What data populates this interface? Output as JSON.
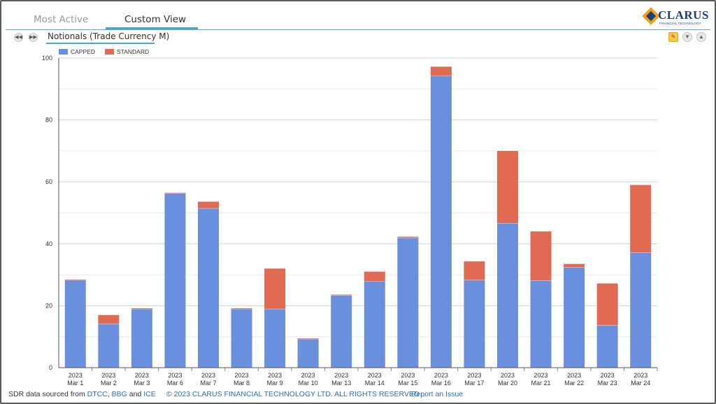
{
  "tabs": [
    {
      "label": "Most Active",
      "active": false
    },
    {
      "label": "Custom View",
      "active": true
    }
  ],
  "logo": {
    "name": "CLARUS",
    "tagline": "FINANCIAL TECHNOLOGY"
  },
  "subtitle": "Notionals (Trade Currency M)",
  "toolbar": {
    "icons": [
      "note-icon",
      "expand-down-icon",
      "collapse-up-icon"
    ]
  },
  "nav": {
    "icons": [
      "rewind-icon",
      "fast-forward-icon"
    ]
  },
  "colors": {
    "capped": "#6a8fdc",
    "standard": "#e06a52",
    "accent": "#4aa6cf",
    "grid": "#dcdcdc",
    "brand": "#1c3f7c"
  },
  "chart_data": {
    "type": "bar",
    "stacked": true,
    "title": "",
    "xlabel": "",
    "ylabel": "",
    "ylim": [
      0,
      100
    ],
    "yticks": [
      0,
      20,
      40,
      60,
      80,
      100
    ],
    "grid": true,
    "legend_position": "top-left",
    "categories": [
      [
        "2023",
        "Mar 1"
      ],
      [
        "2023",
        "Mar 2"
      ],
      [
        "2023",
        "Mar 3"
      ],
      [
        "2023",
        "Mar 6"
      ],
      [
        "2023",
        "Mar 7"
      ],
      [
        "2023",
        "Mar 8"
      ],
      [
        "2023",
        "Mar 9"
      ],
      [
        "2023",
        "Mar 10"
      ],
      [
        "2023",
        "Mar 13"
      ],
      [
        "2023",
        "Mar 14"
      ],
      [
        "2023",
        "Mar 15"
      ],
      [
        "2023",
        "Mar 16"
      ],
      [
        "2023",
        "Mar 17"
      ],
      [
        "2023",
        "Mar 20"
      ],
      [
        "2023",
        "Mar 21"
      ],
      [
        "2023",
        "Mar 22"
      ],
      [
        "2023",
        "Mar 23"
      ],
      [
        "2023",
        "Mar 24"
      ]
    ],
    "series": [
      {
        "name": "CAPPED",
        "values": [
          28.3,
          14.2,
          19.0,
          56.3,
          51.5,
          19.0,
          19.0,
          9.3,
          23.4,
          27.9,
          42.0,
          94.3,
          28.3,
          46.7,
          28.2,
          32.4,
          13.7,
          37.2
        ]
      },
      {
        "name": "STANDARD",
        "values": [
          0.2,
          2.8,
          0.2,
          0.2,
          2.1,
          0.2,
          13.0,
          0.2,
          0.2,
          3.1,
          0.3,
          2.9,
          6.0,
          23.3,
          15.8,
          1.1,
          13.5,
          21.8
        ]
      }
    ]
  },
  "footer": {
    "prefix": "SDR data sourced from",
    "source1": "DTCC",
    "sep1": ",",
    "source2": "BBG",
    "and": "and",
    "source3": "ICE",
    "copyright": "© 2023 CLARUS FINANCIAL TECHNOLOGY LTD. ALL RIGHTS RESERVED",
    "report": "Report an Issue"
  }
}
